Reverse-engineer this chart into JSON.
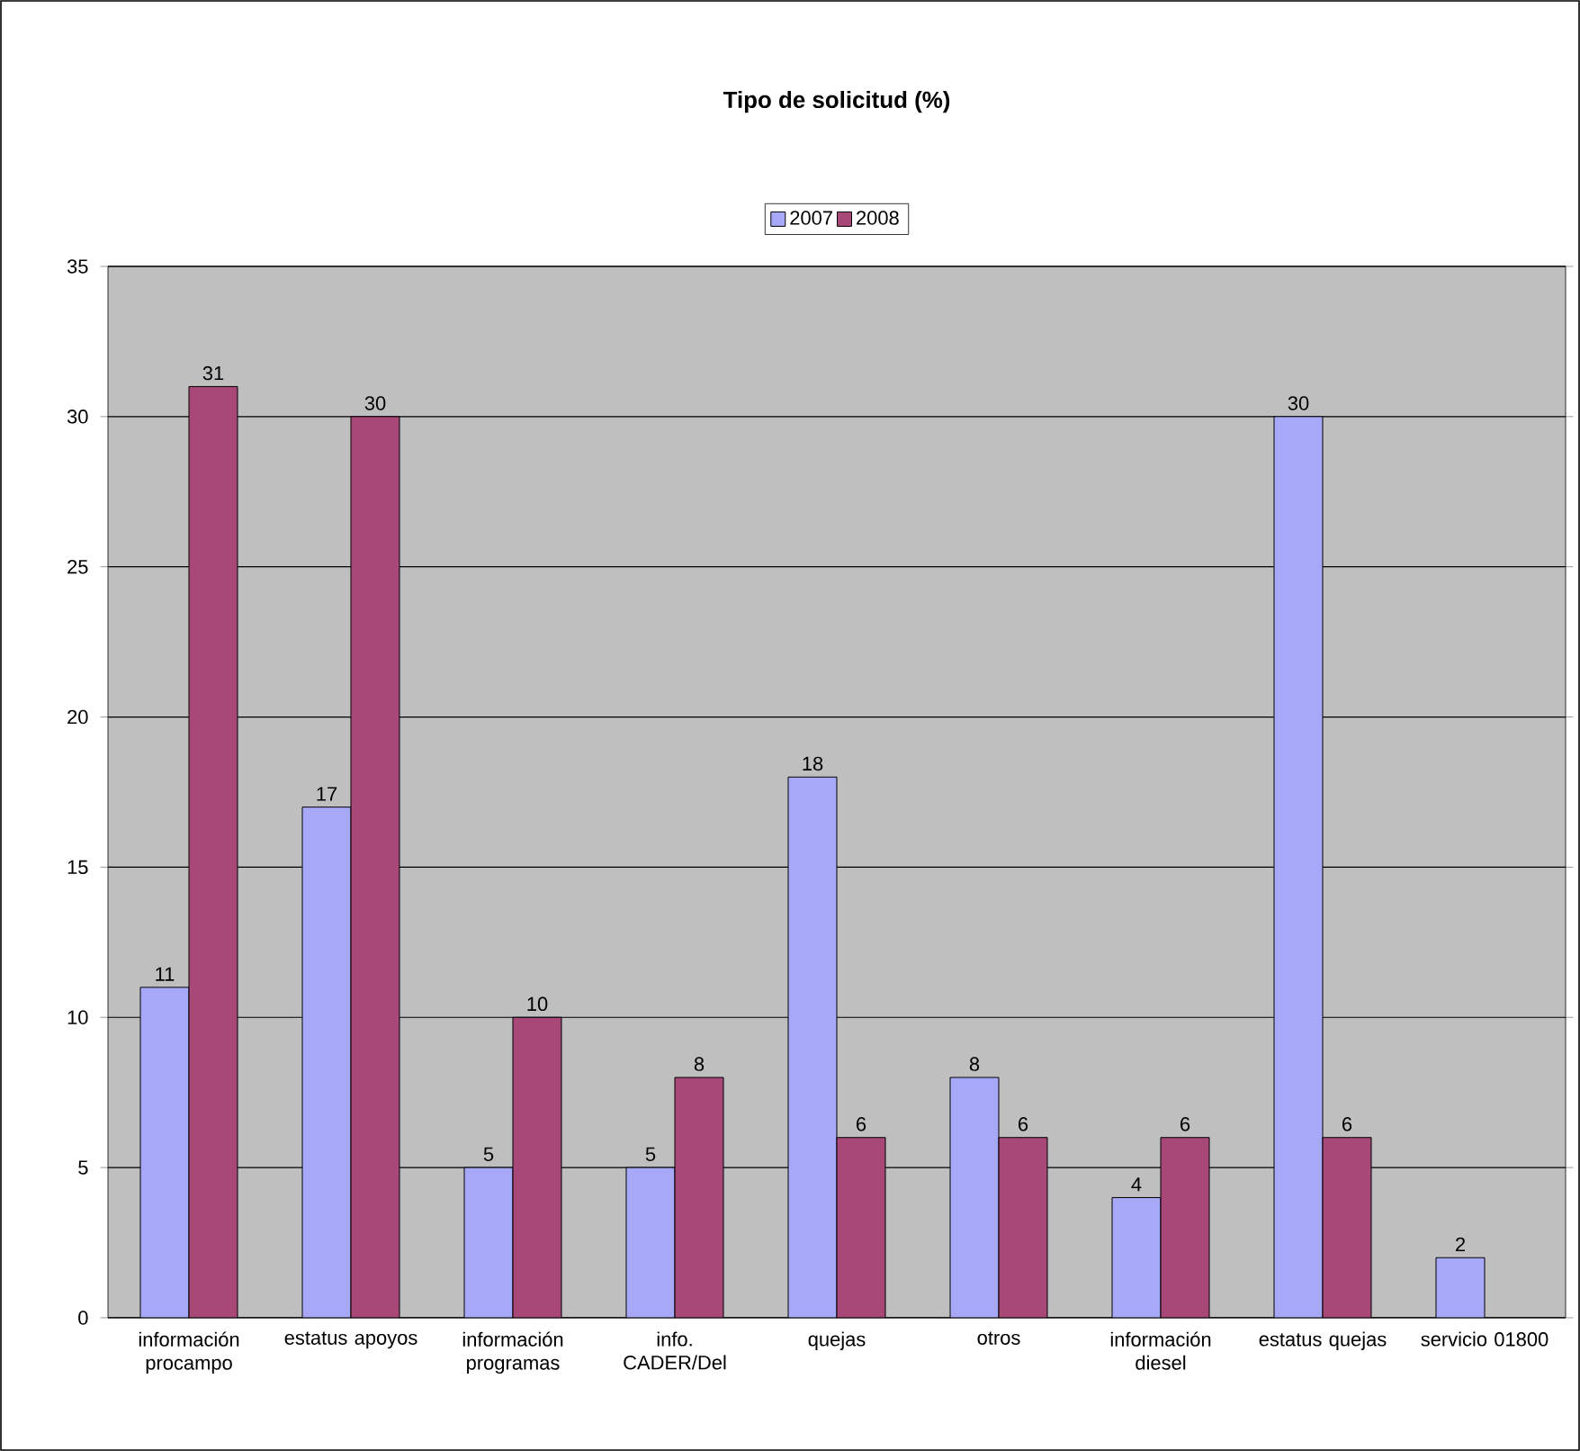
{
  "chart_data": {
    "type": "bar",
    "title": "Tipo de solicitud (%)",
    "categories": [
      "información procampo",
      "estatus apoyos",
      "información programas",
      "info. CADER/Del",
      "quejas",
      "otros",
      "información diesel",
      "estatus quejas",
      "servicio 01800"
    ],
    "series": [
      {
        "name": "2007",
        "color": "#a8a8f8",
        "values": [
          11,
          17,
          5,
          5,
          18,
          8,
          4,
          30,
          2
        ]
      },
      {
        "name": "2008",
        "color": "#a84878",
        "values": [
          31,
          30,
          10,
          8,
          6,
          6,
          6,
          6,
          null
        ]
      }
    ],
    "ylim": [
      0,
      35
    ],
    "yticks": [
      0,
      5,
      10,
      15,
      20,
      25,
      30,
      35
    ],
    "grid": "y",
    "legend": "top",
    "data_labels": true
  }
}
